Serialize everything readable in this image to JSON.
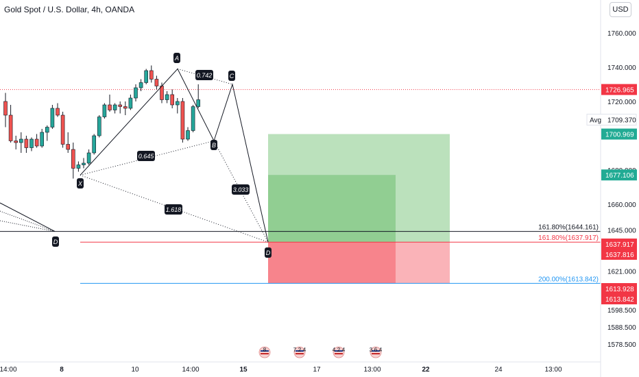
{
  "header": {
    "title": "Gold Spot / U.S. Dollar, 4h, OANDA",
    "currency_button": "USD"
  },
  "chart_data": {
    "type": "candlestick",
    "title": "Gold Spot / U.S. Dollar, 4h, OANDA",
    "colors": {
      "up": "#26a69a",
      "down": "#ef5350",
      "wick": "#131722",
      "profit": "#4caf50",
      "loss": "#f23645",
      "target_line": "#2196f3",
      "current_price": "#f23645",
      "accent_green": "#22ab94"
    },
    "y_axis": {
      "range": [
        1570,
        1772
      ],
      "ticks": [
        "1760.000",
        "1740.000",
        "1720.000",
        "1700.000",
        "1680.000",
        "1660.000",
        "1645.000",
        "1621.000",
        "1598.500",
        "1588.500",
        "1578.500"
      ]
    },
    "x_axis": {
      "ticks": [
        "14:00",
        "8",
        "10",
        "14:00",
        "15",
        "17",
        "13:00",
        "22",
        "24",
        "13:00"
      ]
    },
    "price_tags": [
      {
        "label": "1726.965",
        "value": 1726.965,
        "style": "red"
      },
      {
        "label": "1709.370",
        "value": 1709.37,
        "style": "avg",
        "prefix": "Avg"
      },
      {
        "label": "1700.969",
        "value": 1700.969,
        "style": "green"
      },
      {
        "label": "1677.106",
        "value": 1677.106,
        "style": "green"
      },
      {
        "label": "1637.917",
        "value": 1637.917,
        "style": "red"
      },
      {
        "label": "1637.816",
        "value": 1637.816,
        "style": "red"
      },
      {
        "label": "1613.928",
        "value": 1613.928,
        "style": "red"
      },
      {
        "label": "1613.842",
        "value": 1613.842,
        "style": "red"
      }
    ],
    "levels": [
      {
        "label": "161.80%(1644.161)",
        "value": 1644.161,
        "style": "black"
      },
      {
        "label": "161.80%(1637.917)",
        "value": 1637.917,
        "style": "red"
      },
      {
        "label": "200.00%(1613.842)",
        "value": 1613.842,
        "style": "blue"
      }
    ],
    "pattern_points": [
      {
        "label": "X",
        "value": 1677
      },
      {
        "label": "A",
        "value": 1739
      },
      {
        "label": "B",
        "value": 1697
      },
      {
        "label": "C",
        "value": 1730
      },
      {
        "label": "D",
        "value": 1637.9
      }
    ],
    "ratios": [
      "0.742",
      "0.645",
      "3.033",
      "1.618"
    ],
    "prior_point": "D",
    "candles": [
      [
        1720,
        1725,
        1705,
        1712
      ],
      [
        1712,
        1718,
        1696,
        1697
      ],
      [
        1697,
        1700,
        1692,
        1696
      ],
      [
        1696,
        1702,
        1690,
        1698
      ],
      [
        1698,
        1700,
        1690,
        1693
      ],
      [
        1693,
        1699,
        1691,
        1698
      ],
      [
        1698,
        1701,
        1693,
        1694
      ],
      [
        1694,
        1704,
        1693,
        1702
      ],
      [
        1702,
        1706,
        1697,
        1705
      ],
      [
        1705,
        1718,
        1704,
        1716
      ],
      [
        1716,
        1719,
        1711,
        1712
      ],
      [
        1712,
        1714,
        1693,
        1695
      ],
      [
        1695,
        1702,
        1690,
        1692
      ],
      [
        1692,
        1696,
        1675,
        1681
      ],
      [
        1681,
        1685,
        1679,
        1683
      ],
      [
        1683,
        1687,
        1681,
        1684
      ],
      [
        1684,
        1692,
        1683,
        1690
      ],
      [
        1690,
        1701,
        1689,
        1700
      ],
      [
        1700,
        1712,
        1699,
        1711
      ],
      [
        1711,
        1719,
        1710,
        1718
      ],
      [
        1718,
        1724,
        1714,
        1715
      ],
      [
        1715,
        1719,
        1713,
        1718
      ],
      [
        1718,
        1720,
        1713,
        1717
      ],
      [
        1717,
        1720,
        1712,
        1716
      ],
      [
        1716,
        1724,
        1715,
        1722
      ],
      [
        1722,
        1730,
        1720,
        1728
      ],
      [
        1728,
        1733,
        1726,
        1731
      ],
      [
        1731,
        1739,
        1730,
        1738
      ],
      [
        1738,
        1741,
        1731,
        1733
      ],
      [
        1733,
        1735,
        1727,
        1729
      ],
      [
        1729,
        1731,
        1719,
        1721
      ],
      [
        1721,
        1726,
        1719,
        1724
      ],
      [
        1724,
        1727,
        1716,
        1718
      ],
      [
        1718,
        1722,
        1713,
        1720
      ],
      [
        1720,
        1722,
        1696,
        1698
      ],
      [
        1698,
        1705,
        1697,
        1703
      ],
      [
        1703,
        1718,
        1702,
        1717
      ],
      [
        1717,
        1730,
        1716,
        1721
      ]
    ],
    "position": {
      "entry": 1637.917,
      "stop": 1613.928,
      "target": 1700.969,
      "partial_target": 1677.106
    },
    "events": [
      {
        "count": "8",
        "nums": []
      },
      {
        "count": "",
        "nums": [
          "7",
          "2",
          "4"
        ]
      },
      {
        "count": "",
        "nums": [
          "4",
          "2",
          "4"
        ]
      },
      {
        "count": "",
        "nums": [
          "3",
          "6",
          "4"
        ]
      }
    ]
  }
}
